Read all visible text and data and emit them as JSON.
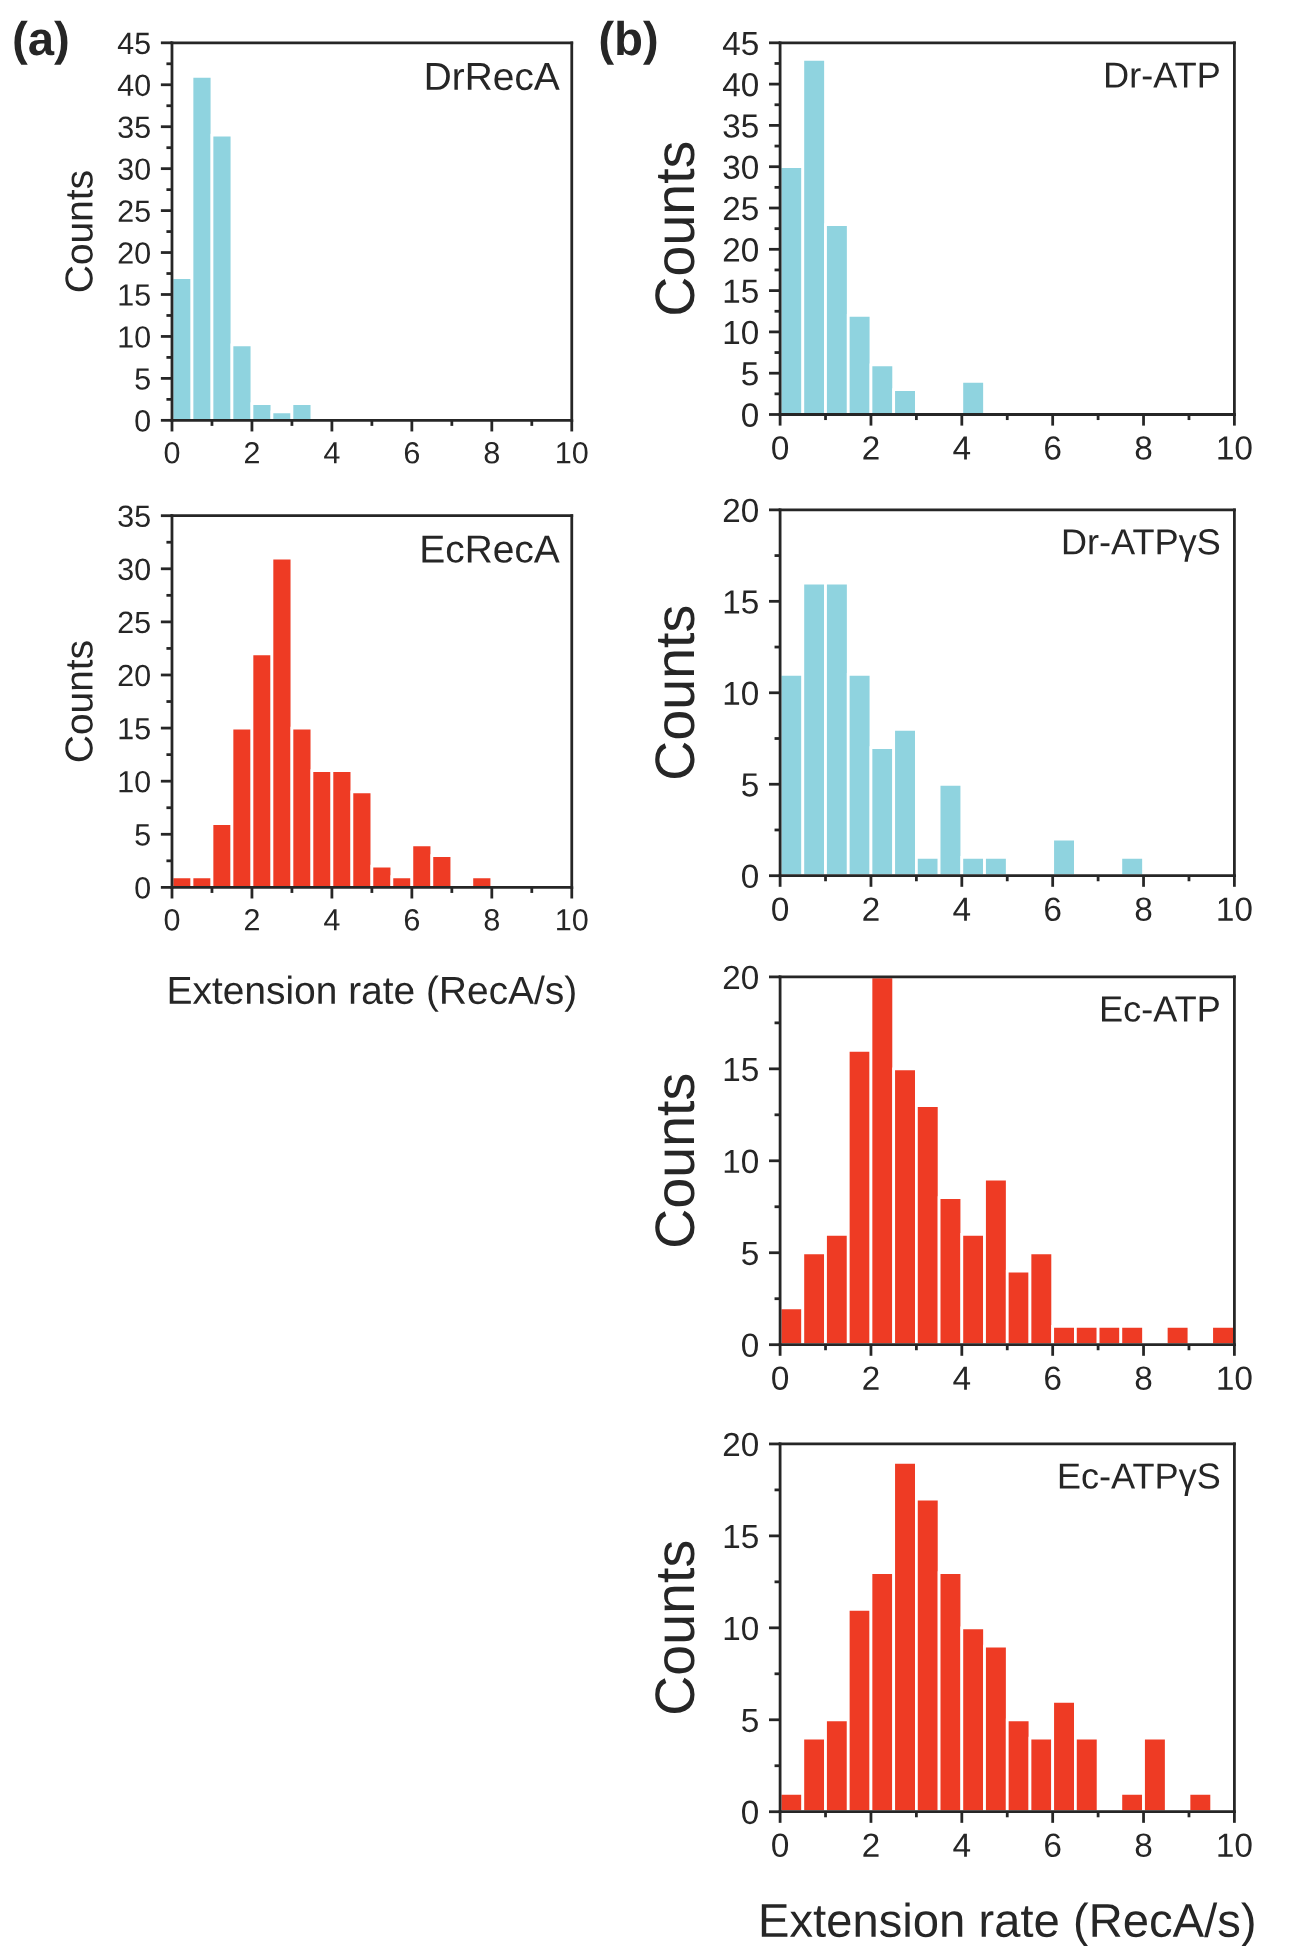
{
  "chart_data": [
    {
      "type": "histogram",
      "title": "DrRecA",
      "ylabel": "Counts",
      "annotations": [
        "(a)"
      ],
      "color": "#8fd3df",
      "bins": [
        0,
        0.5,
        1,
        1.5,
        2,
        2.5,
        3,
        3.5
      ],
      "values": [
        17,
        41,
        34,
        9,
        2,
        1,
        2
      ],
      "xlim": [
        0,
        10
      ],
      "xticks": [
        0,
        2,
        4,
        6,
        8,
        10
      ],
      "ylim": [
        0,
        45
      ],
      "yticks": [
        0,
        5,
        10,
        15,
        20,
        25,
        30,
        35,
        40,
        45
      ],
      "grid": false
    },
    {
      "type": "histogram",
      "title": "EcRecA",
      "ylabel": "Counts",
      "xlabel": "Extension rate (RecA/s)",
      "color": "#ee3b24",
      "bins": [
        0,
        0.5,
        1,
        1.5,
        2,
        2.5,
        3,
        3.5,
        4,
        4.5,
        5,
        5.5,
        6,
        6.5,
        7,
        7.5,
        8
      ],
      "values": [
        1,
        1,
        6,
        15,
        22,
        31,
        15,
        11,
        11,
        9,
        2,
        1,
        4,
        3,
        0,
        1
      ],
      "xlim": [
        0,
        10
      ],
      "xticks": [
        0,
        2,
        4,
        6,
        8,
        10
      ],
      "ylim": [
        0,
        35
      ],
      "yticks": [
        0,
        5,
        10,
        15,
        20,
        25,
        30,
        35
      ],
      "grid": false
    },
    {
      "type": "histogram",
      "title": "Dr-ATP",
      "ylabel": "Counts",
      "annotations": [
        "(b)"
      ],
      "color": "#8fd3df",
      "bins": [
        0,
        0.5,
        1,
        1.5,
        2,
        2.5,
        3,
        3.5,
        4,
        4.5
      ],
      "values": [
        30,
        43,
        23,
        12,
        6,
        3,
        0,
        0,
        4
      ],
      "xlim": [
        0,
        10
      ],
      "xticks": [
        0,
        2,
        4,
        6,
        8,
        10
      ],
      "ylim": [
        0,
        45
      ],
      "yticks": [
        0,
        5,
        10,
        15,
        20,
        25,
        30,
        35,
        40,
        45
      ],
      "grid": false
    },
    {
      "type": "histogram",
      "title": "Dr-ATPγS",
      "ylabel": "Counts",
      "color": "#8fd3df",
      "bins": [
        0,
        0.5,
        1,
        1.5,
        2,
        2.5,
        3,
        3.5,
        4,
        4.5,
        5,
        5.5,
        6,
        6.5,
        7,
        7.5,
        8
      ],
      "values": [
        11,
        16,
        16,
        11,
        7,
        8,
        1,
        5,
        1,
        1,
        0,
        0,
        2,
        0,
        0,
        1
      ],
      "xlim": [
        0,
        10
      ],
      "xticks": [
        0,
        2,
        4,
        6,
        8,
        10
      ],
      "ylim": [
        0,
        20
      ],
      "yticks": [
        0,
        5,
        10,
        15,
        20
      ],
      "grid": false
    },
    {
      "type": "histogram",
      "title": "Ec-ATP",
      "ylabel": "Counts",
      "color": "#ee3b24",
      "bins": [
        0,
        0.5,
        1,
        1.5,
        2,
        2.5,
        3,
        3.5,
        4,
        4.5,
        5,
        5.5,
        6,
        6.5,
        7,
        7.5,
        8,
        8.5,
        9,
        9.5,
        10
      ],
      "values": [
        2,
        5,
        6,
        16,
        20,
        15,
        13,
        8,
        6,
        9,
        4,
        5,
        1,
        1,
        1,
        1,
        0,
        1,
        0,
        1
      ],
      "xlim": [
        0,
        10
      ],
      "xticks": [
        0,
        2,
        4,
        6,
        8,
        10
      ],
      "ylim": [
        0,
        20
      ],
      "yticks": [
        0,
        5,
        10,
        15,
        20
      ],
      "grid": false
    },
    {
      "type": "histogram",
      "title": "Ec-ATPγS",
      "ylabel": "Counts",
      "xlabel": "Extension rate (RecA/s)",
      "color": "#ee3b24",
      "bins": [
        0,
        0.5,
        1,
        1.5,
        2,
        2.5,
        3,
        3.5,
        4,
        4.5,
        5,
        5.5,
        6,
        6.5,
        7,
        7.5,
        8,
        8.5,
        9,
        9.5
      ],
      "values": [
        1,
        4,
        5,
        11,
        13,
        19,
        17,
        13,
        10,
        9,
        5,
        4,
        6,
        4,
        0,
        1,
        4,
        0,
        1
      ],
      "xlim": [
        0,
        10
      ],
      "xticks": [
        0,
        2,
        4,
        6,
        8,
        10
      ],
      "ylim": [
        0,
        20
      ],
      "yticks": [
        0,
        5,
        10,
        15,
        20
      ],
      "grid": false
    }
  ]
}
